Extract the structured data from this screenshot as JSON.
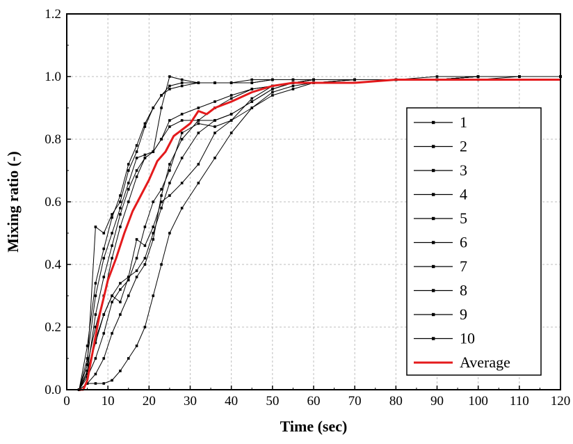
{
  "chart_data": {
    "type": "line",
    "title": "",
    "xlabel": "Time (sec)",
    "ylabel": "Mixing ratio (-)",
    "xlim": [
      0,
      120
    ],
    "ylim": [
      0,
      1.2
    ],
    "xticks": [
      "0",
      "10",
      "20",
      "30",
      "40",
      "50",
      "60",
      "70",
      "80",
      "90",
      "100",
      "110",
      "120"
    ],
    "yticks": [
      "0.0",
      "0.2",
      "0.4",
      "0.6",
      "0.8",
      "1.0",
      "1.2"
    ],
    "grid": true,
    "legend": "right",
    "colors": {
      "runs": "#000000",
      "average": "#e41a1c"
    },
    "series": [
      {
        "name": "1",
        "x": [
          3,
          5,
          7,
          9,
          11,
          13,
          15,
          17,
          19,
          21,
          23,
          25,
          28,
          32,
          36,
          40,
          45,
          50,
          55,
          60,
          70,
          80,
          90,
          100,
          110,
          120
        ],
        "y": [
          0,
          0.14,
          0.34,
          0.45,
          0.55,
          0.62,
          0.72,
          0.78,
          0.85,
          0.9,
          0.94,
          0.97,
          0.98,
          0.98,
          0.98,
          0.98,
          0.98,
          0.99,
          0.99,
          0.99,
          0.99,
          0.99,
          0.99,
          1.0,
          1.0,
          1.0
        ]
      },
      {
        "name": "2",
        "x": [
          3,
          5,
          7,
          9,
          11,
          13,
          15,
          17,
          19,
          21,
          23,
          25,
          28,
          32,
          36,
          40,
          45,
          50,
          55,
          60,
          70,
          80,
          90,
          100,
          110,
          120
        ],
        "y": [
          0,
          0.1,
          0.3,
          0.42,
          0.5,
          0.58,
          0.66,
          0.74,
          0.75,
          0.76,
          0.9,
          1.0,
          0.99,
          0.98,
          0.98,
          0.98,
          0.98,
          0.99,
          0.99,
          0.99,
          0.99,
          0.99,
          0.99,
          1.0,
          1.0,
          1.0
        ]
      },
      {
        "name": "3",
        "x": [
          3,
          5,
          7,
          9,
          11,
          13,
          15,
          17,
          19,
          21,
          23,
          25,
          28,
          32,
          36,
          40,
          45,
          50,
          55,
          60,
          70,
          80,
          90,
          100,
          110,
          120
        ],
        "y": [
          0,
          0.06,
          0.24,
          0.36,
          0.46,
          0.56,
          0.64,
          0.7,
          0.74,
          0.76,
          0.8,
          0.86,
          0.88,
          0.9,
          0.92,
          0.94,
          0.96,
          0.97,
          0.98,
          0.98,
          0.99,
          0.99,
          0.99,
          0.99,
          1.0,
          1.0
        ]
      },
      {
        "name": "4",
        "x": [
          3,
          5,
          7,
          9,
          11,
          13,
          15,
          17,
          19,
          21,
          23,
          25,
          28,
          32,
          36,
          40,
          45,
          50,
          55,
          60,
          70,
          80,
          90,
          100,
          110,
          120
        ],
        "y": [
          0,
          0.02,
          0.02,
          0.02,
          0.03,
          0.06,
          0.1,
          0.14,
          0.2,
          0.3,
          0.4,
          0.5,
          0.58,
          0.66,
          0.74,
          0.82,
          0.9,
          0.95,
          0.97,
          0.98,
          0.99,
          0.99,
          0.99,
          1.0,
          1.0,
          1.0
        ]
      },
      {
        "name": "5",
        "x": [
          3,
          5,
          7,
          9,
          11,
          13,
          15,
          17,
          19,
          21,
          23,
          25,
          28,
          32,
          36,
          40,
          45,
          50,
          55,
          60,
          70,
          80,
          90,
          100,
          110,
          120
        ],
        "y": [
          0,
          0.02,
          0.05,
          0.1,
          0.18,
          0.24,
          0.3,
          0.36,
          0.4,
          0.48,
          0.62,
          0.72,
          0.8,
          0.86,
          0.9,
          0.93,
          0.96,
          0.97,
          0.98,
          0.99,
          0.99,
          0.99,
          0.99,
          1.0,
          1.0,
          1.0
        ]
      },
      {
        "name": "6",
        "x": [
          3,
          5,
          7,
          9,
          11,
          13,
          15,
          17,
          19,
          21,
          23,
          25,
          28,
          32,
          36,
          40,
          45,
          50,
          55,
          60,
          70,
          80,
          90,
          100,
          110,
          120
        ],
        "y": [
          0,
          0.04,
          0.1,
          0.18,
          0.28,
          0.32,
          0.35,
          0.42,
          0.52,
          0.6,
          0.64,
          0.7,
          0.82,
          0.85,
          0.84,
          0.86,
          0.93,
          0.97,
          0.98,
          0.99,
          0.99,
          0.99,
          0.99,
          1.0,
          1.0,
          1.0
        ]
      },
      {
        "name": "7",
        "x": [
          3,
          5,
          7,
          9,
          11,
          13,
          15,
          17,
          19,
          21,
          23,
          25,
          28,
          32,
          36,
          40,
          45,
          50,
          55,
          60,
          70,
          80,
          90,
          100,
          110,
          120
        ],
        "y": [
          0,
          0.08,
          0.52,
          0.5,
          0.56,
          0.6,
          0.7,
          0.76,
          0.84,
          0.9,
          0.94,
          0.96,
          0.97,
          0.98,
          0.98,
          0.98,
          0.99,
          0.99,
          0.99,
          0.99,
          0.99,
          0.99,
          1.0,
          1.0,
          1.0,
          1.0
        ]
      },
      {
        "name": "8",
        "x": [
          3,
          5,
          7,
          9,
          11,
          13,
          15,
          17,
          19,
          21,
          23,
          25,
          28,
          32,
          36,
          40,
          45,
          50,
          55,
          60,
          70,
          80,
          90,
          100,
          110,
          120
        ],
        "y": [
          0,
          0.08,
          0.2,
          0.3,
          0.42,
          0.52,
          0.6,
          0.68,
          0.74,
          0.76,
          0.8,
          0.84,
          0.86,
          0.86,
          0.86,
          0.88,
          0.92,
          0.96,
          0.98,
          0.99,
          0.99,
          0.99,
          0.99,
          1.0,
          1.0,
          1.0
        ]
      },
      {
        "name": "9",
        "x": [
          3,
          5,
          7,
          9,
          11,
          13,
          15,
          17,
          19,
          21,
          23,
          25,
          28,
          32,
          36,
          40,
          45,
          50,
          55,
          60,
          70,
          80,
          90,
          100,
          110,
          120
        ],
        "y": [
          0,
          0.06,
          0.16,
          0.24,
          0.3,
          0.34,
          0.36,
          0.38,
          0.42,
          0.5,
          0.58,
          0.66,
          0.74,
          0.82,
          0.86,
          0.88,
          0.92,
          0.96,
          0.98,
          0.99,
          0.99,
          0.99,
          0.99,
          1.0,
          1.0,
          1.0
        ]
      },
      {
        "name": "10",
        "x": [
          3,
          5,
          7,
          9,
          11,
          13,
          15,
          17,
          19,
          21,
          23,
          25,
          28,
          32,
          36,
          40,
          45,
          50,
          55,
          60,
          70,
          80,
          90,
          100,
          110,
          120
        ],
        "y": [
          0,
          0.05,
          0.15,
          0.24,
          0.3,
          0.28,
          0.36,
          0.48,
          0.46,
          0.52,
          0.6,
          0.62,
          0.66,
          0.72,
          0.82,
          0.86,
          0.9,
          0.94,
          0.96,
          0.98,
          0.99,
          0.99,
          0.99,
          1.0,
          1.0,
          1.0
        ]
      },
      {
        "name": "Average",
        "x": [
          3,
          4,
          5,
          6,
          7,
          8,
          10,
          12,
          14,
          16,
          18,
          20,
          22,
          24,
          26,
          28,
          30,
          32,
          34,
          36,
          40,
          45,
          50,
          55,
          60,
          70,
          80,
          90,
          100,
          110,
          120
        ],
        "y": [
          0,
          0,
          0.03,
          0.1,
          0.17,
          0.24,
          0.35,
          0.42,
          0.5,
          0.57,
          0.62,
          0.67,
          0.73,
          0.76,
          0.81,
          0.83,
          0.85,
          0.89,
          0.88,
          0.9,
          0.92,
          0.95,
          0.97,
          0.98,
          0.98,
          0.98,
          0.99,
          0.99,
          0.99,
          0.99,
          0.99
        ]
      }
    ]
  }
}
